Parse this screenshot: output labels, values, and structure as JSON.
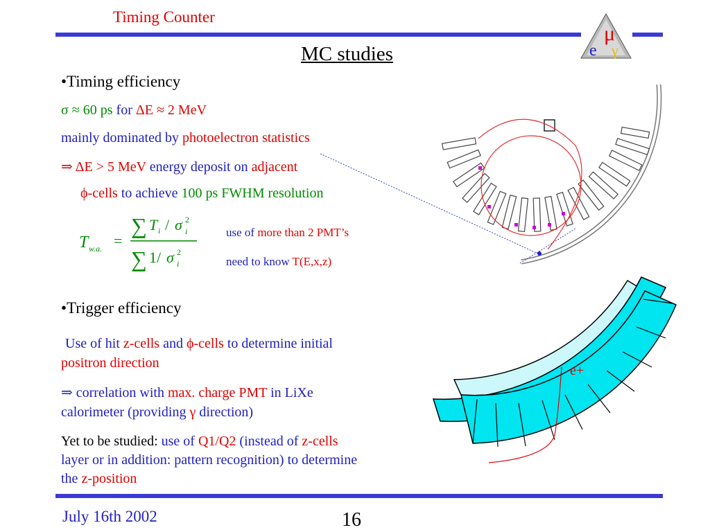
{
  "header": {
    "section_title": "Timing Counter",
    "slide_title": "MC studies",
    "logo_letters": [
      "μ",
      "e",
      "γ"
    ]
  },
  "timing": {
    "heading": "•Timing efficiency",
    "sigma_line": {
      "part1": "σ  ≈ 60 ps",
      "part2": "for",
      "part3": "ΔE ≈ 2 MeV"
    },
    "dominated": {
      "part1": "mainly dominated by",
      "part2": "photoelectron statistics"
    },
    "deposit": {
      "part1": "⇒ ΔE > 5 MeV",
      "part2": "energy deposit  on",
      "part3": "adjacent"
    },
    "phi_cells": {
      "part1": "ϕ-cells",
      "part2": "to achieve",
      "part3": "100 ps FWHM resolution"
    },
    "formula": {
      "lhs": "T",
      "lhs_sub": "w.a.",
      "equals": "=",
      "num_var": "T",
      "num_sub": "i",
      "slash": "/",
      "sigma": "σ",
      "sup": "2",
      "sub": "i",
      "den_one": "1"
    },
    "note1": {
      "part1": "use of",
      "part2": "more than 2 PMT’s"
    },
    "note2": {
      "part1": "need to know",
      "part2": "T(E,x,z)"
    }
  },
  "trigger": {
    "heading": "•Trigger efficiency",
    "p1": {
      "a": "Use of hit",
      "b": "z-cells",
      "c": "and",
      "d": "ϕ-cells",
      "e": "to determine initial",
      "f": "positron direction"
    },
    "p2": {
      "a": "⇒",
      "b": "correlation with",
      "c": "max. charge PMT",
      "d": "in LiXe",
      "e": "calorimeter (providing",
      "f": "γ",
      "g": "direction)"
    },
    "p3": {
      "a": "Yet to be studied:",
      "b": "use of",
      "c": "Q1/Q2",
      "d": "(instead of",
      "e": "z-cells",
      "f": "layer or in addition: pattern recognition) to determine",
      "g": "the",
      "h": "z-position"
    }
  },
  "diagram": {
    "positron_label": "e+"
  },
  "footer": {
    "date": "July 16th 2002",
    "page": "16"
  },
  "colors": {
    "bar": "#3a3ad8",
    "red": "#e00000",
    "blue": "#2020c0",
    "green": "#008a00",
    "cyan": "#00e5f0",
    "light_cyan": "#ccf8fc"
  }
}
